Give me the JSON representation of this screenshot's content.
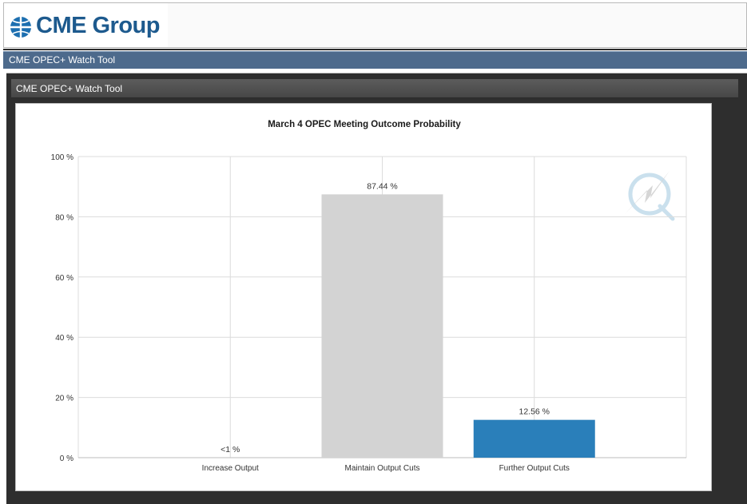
{
  "header": {
    "logo_text": "CME Group"
  },
  "navbar": {
    "title": "CME OPEC+ Watch Tool"
  },
  "panel": {
    "title": "CME OPEC+ Watch Tool"
  },
  "colors": {
    "nav": "#4d6a8c",
    "panel": "#2e2e2e",
    "bar_gray": "#d3d3d3",
    "bar_blue": "#2a7fba"
  },
  "chart_data": {
    "type": "bar",
    "title": "March 4 OPEC Meeting Outcome Probability",
    "categories": [
      "Increase Output",
      "Maintain Output Cuts",
      "Further Output Cuts"
    ],
    "values": [
      0,
      87.44,
      12.56
    ],
    "data_labels": [
      "<1 %",
      "87.44 %",
      "12.56 %"
    ],
    "bar_colors": [
      "#d3d3d3",
      "#d3d3d3",
      "#2a7fba"
    ],
    "ylim": [
      0,
      100
    ],
    "yticks": [
      0,
      20,
      40,
      60,
      80,
      100
    ],
    "ytick_labels": [
      "0 %",
      "20 %",
      "40 %",
      "60 %",
      "80 %",
      "100 %"
    ],
    "grid": true,
    "watermark": "q-logo-icon"
  }
}
